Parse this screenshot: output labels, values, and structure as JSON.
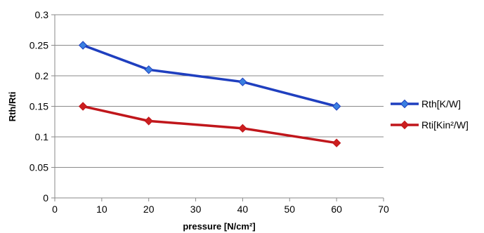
{
  "chart_data": {
    "type": "line",
    "title": "",
    "xlabel": "pressure [N/cm²]",
    "ylabel": "Rth/Rti",
    "xlim": [
      0,
      70
    ],
    "ylim": [
      0,
      0.3
    ],
    "x_ticks": [
      "0",
      "10",
      "20",
      "30",
      "40",
      "50",
      "60",
      "70"
    ],
    "y_ticks": [
      "0",
      "0.05",
      "0.1",
      "0.15",
      "0.2",
      "0.25",
      "0.3"
    ],
    "grid": "horizontal",
    "legend_position": "right",
    "series": [
      {
        "name": "Rth[K/W]",
        "color": "#1f3fbf",
        "marker_color": "#3a7fe0",
        "marker": "diamond",
        "x": [
          6,
          20,
          40,
          60
        ],
        "y": [
          0.25,
          0.21,
          0.19,
          0.15
        ]
      },
      {
        "name": "Rti[Kin²/W]",
        "color": "#c0161b",
        "marker_color": "#cc1f1f",
        "marker": "diamond",
        "x": [
          6,
          20,
          40,
          60
        ],
        "y": [
          0.15,
          0.126,
          0.114,
          0.09
        ]
      }
    ]
  }
}
